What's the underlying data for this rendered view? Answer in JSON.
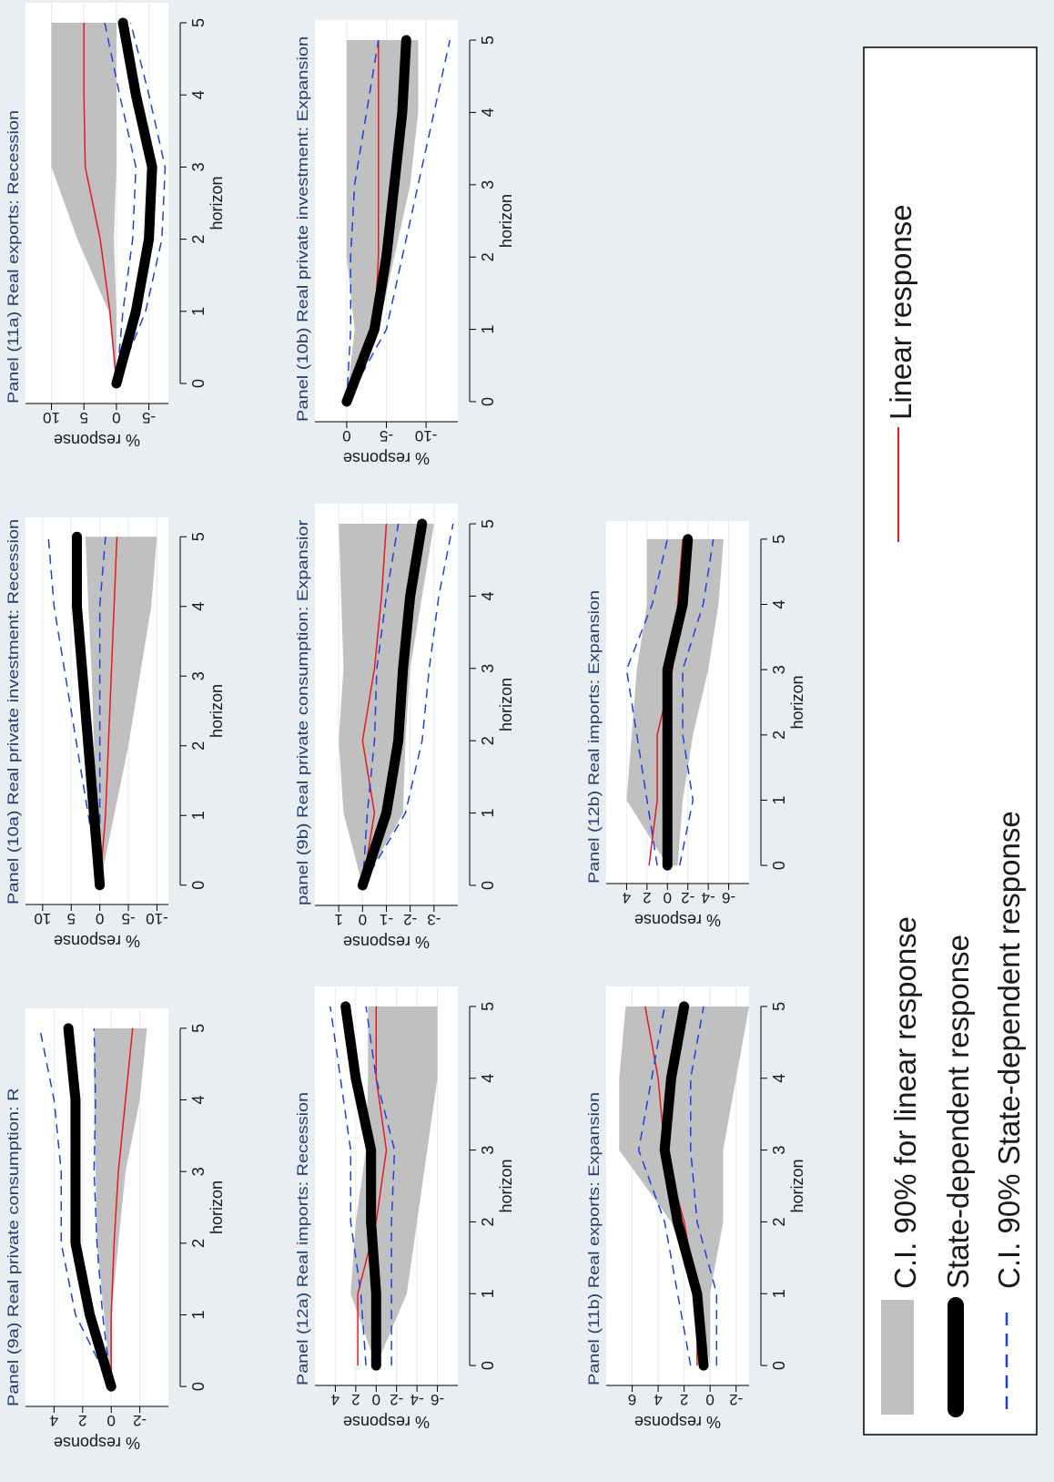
{
  "chart_data": [
    {
      "id": "p11a",
      "type": "line",
      "title": "Panel (11a) Real exports: Recession",
      "xlabel": "horizon",
      "ylabel": "% response",
      "x": [
        0,
        1,
        2,
        3,
        4,
        5
      ],
      "xticks": [
        0,
        1,
        2,
        3,
        4,
        5
      ],
      "ylim": [
        -8,
        14
      ],
      "yticks": [
        -5,
        0,
        5,
        10
      ],
      "series": [
        {
          "name": "C.I. 90% for linear response",
          "kind": "band",
          "lower": [
            0,
            0,
            0.4,
            0,
            0,
            0
          ],
          "upper": [
            0,
            1.2,
            6,
            10,
            10,
            10
          ]
        },
        {
          "name": "Linear response",
          "kind": "linear",
          "values": [
            0,
            1,
            2.5,
            4.8,
            5,
            5
          ]
        },
        {
          "name": "State-dependent response",
          "kind": "state",
          "values": [
            0,
            -3,
            -5,
            -5.5,
            -3,
            -1
          ]
        },
        {
          "name": "C.I. 90% State-dependent response",
          "kind": "ci",
          "values": [
            0,
            -1,
            -2.5,
            -3,
            -0.5,
            1.8
          ]
        },
        {
          "name": "C.I. 90% State-dependent response",
          "kind": "ci",
          "values": [
            0,
            -4.5,
            -7,
            -7.5,
            -5,
            -2.2
          ]
        }
      ]
    },
    {
      "id": "p10a",
      "type": "line",
      "title": "Panel (10a) Real private investment: Recession",
      "xlabel": "horizon",
      "ylabel": "% response",
      "x": [
        0,
        1,
        2,
        3,
        4,
        5
      ],
      "xticks": [
        0,
        1,
        2,
        3,
        4,
        5
      ],
      "ylim": [
        -12,
        13
      ],
      "yticks": [
        -10,
        -5,
        0,
        5,
        10
      ],
      "series": [
        {
          "name": "C.I. 90% for linear response",
          "kind": "band",
          "lower": [
            0,
            -2.5,
            -5,
            -7,
            -9,
            -10
          ],
          "upper": [
            0,
            0.8,
            1,
            1.4,
            2,
            2.5
          ]
        },
        {
          "name": "Linear response",
          "kind": "linear",
          "values": [
            0,
            -1,
            -1.5,
            -2,
            -2.5,
            -3
          ]
        },
        {
          "name": "State-dependent response",
          "kind": "state",
          "values": [
            0,
            1,
            2,
            3,
            4,
            4
          ]
        },
        {
          "name": "C.I. 90% State-dependent response",
          "kind": "ci",
          "values": [
            0,
            2,
            4,
            6,
            8,
            9
          ]
        },
        {
          "name": "C.I. 90% State-dependent response",
          "kind": "ci",
          "values": [
            0,
            0,
            0,
            0,
            0,
            -1
          ]
        }
      ]
    },
    {
      "id": "p9a",
      "type": "line",
      "title": "Panel (9a) Real private consumption: R",
      "xlabel": "horizon",
      "ylabel": "% response",
      "x": [
        0,
        1,
        2,
        3,
        4,
        5
      ],
      "xticks": [
        0,
        1,
        2,
        3,
        4,
        5
      ],
      "ylim": [
        -4,
        6
      ],
      "yticks": [
        -2,
        0,
        2,
        4
      ],
      "series": [
        {
          "name": "C.I. 90% for linear response",
          "kind": "band",
          "lower": [
            0,
            0,
            -0.5,
            -1,
            -2,
            -2.5
          ],
          "upper": [
            0,
            0.5,
            1,
            1.1,
            1.2,
            1.2
          ]
        },
        {
          "name": "Linear response",
          "kind": "linear",
          "values": [
            0,
            0,
            -0.2,
            -0.5,
            -1,
            -1.5
          ]
        },
        {
          "name": "State-dependent response",
          "kind": "state",
          "values": [
            0,
            1.5,
            2.5,
            2.5,
            2.5,
            3
          ]
        },
        {
          "name": "C.I. 90% State-dependent response",
          "kind": "ci",
          "values": [
            0,
            2.5,
            3.5,
            3.5,
            4,
            5
          ]
        },
        {
          "name": "C.I. 90% State-dependent response",
          "kind": "ci",
          "values": [
            0,
            0.6,
            1,
            1.2,
            1.1,
            1.2
          ]
        }
      ]
    },
    {
      "id": "p10b",
      "type": "line",
      "title": "Panel (10b) Real private investment: Expansion",
      "xlabel": "horizon",
      "ylabel": "% response",
      "x": [
        0,
        1,
        2,
        3,
        4,
        5
      ],
      "xticks": [
        0,
        1,
        2,
        3,
        4,
        5
      ],
      "ylim": [
        -14,
        4
      ],
      "yticks": [
        -10,
        -5,
        0
      ],
      "series": [
        {
          "name": "C.I. 90% for linear response",
          "kind": "band",
          "lower": [
            0,
            -4,
            -6,
            -8,
            -9,
            -9
          ],
          "upper": [
            0,
            -1,
            0,
            0,
            0,
            0
          ]
        },
        {
          "name": "Linear response",
          "kind": "linear",
          "values": [
            0,
            -3.5,
            -4,
            -4,
            -4,
            -4
          ]
        },
        {
          "name": "State-dependent response",
          "kind": "state",
          "values": [
            0,
            -3.5,
            -5,
            -6,
            -7,
            -7.5
          ]
        },
        {
          "name": "C.I. 90% State-dependent response",
          "kind": "ci",
          "values": [
            0,
            -0.5,
            -0.5,
            -1,
            -2.5,
            -4
          ]
        },
        {
          "name": "C.I. 90% State-dependent response",
          "kind": "ci",
          "values": [
            0,
            -5,
            -7,
            -9,
            -11,
            -13
          ]
        }
      ]
    },
    {
      "id": "p9b",
      "type": "line",
      "title": "panel (9b) Real private consumption: Expansior",
      "xlabel": "horizon",
      "ylabel": "% response",
      "x": [
        0,
        1,
        2,
        3,
        4,
        5
      ],
      "xticks": [
        0,
        1,
        2,
        3,
        4,
        5
      ],
      "ylim": [
        -4,
        2
      ],
      "yticks": [
        -3,
        -2,
        -1,
        0,
        1
      ],
      "series": [
        {
          "name": "C.I. 90% for linear response",
          "kind": "band",
          "lower": [
            0,
            -1.7,
            -1.8,
            -2,
            -2.5,
            -3
          ],
          "upper": [
            0,
            0.8,
            1,
            0.8,
            0.9,
            1
          ]
        },
        {
          "name": "Linear response",
          "kind": "linear",
          "values": [
            0,
            -0.5,
            0,
            -0.5,
            -0.8,
            -1
          ]
        },
        {
          "name": "State-dependent response",
          "kind": "state",
          "values": [
            0,
            -1,
            -1.5,
            -1.7,
            -2,
            -2.5
          ]
        },
        {
          "name": "C.I. 90% State-dependent response",
          "kind": "ci",
          "values": [
            0,
            -0.2,
            -0.5,
            -0.6,
            -1,
            -1.5
          ]
        },
        {
          "name": "C.I. 90% State-dependent response",
          "kind": "ci",
          "values": [
            0,
            -1.8,
            -2.5,
            -2.8,
            -3.2,
            -3.8
          ]
        }
      ]
    },
    {
      "id": "p12a",
      "type": "line",
      "title": "Panel (12a) Real imports: Recession",
      "xlabel": "horizon",
      "ylabel": "% response",
      "x": [
        0,
        1,
        2,
        3,
        4,
        5
      ],
      "xticks": [
        0,
        1,
        2,
        3,
        4,
        5
      ],
      "ylim": [
        -8,
        6
      ],
      "yticks": [
        -6,
        -4,
        -2,
        0,
        2,
        4
      ],
      "series": [
        {
          "name": "C.I. 90% for linear response",
          "kind": "band",
          "lower": [
            0,
            -3,
            -4,
            -5,
            -6,
            -6
          ],
          "upper": [
            0,
            2.5,
            2,
            1,
            0.8,
            0.8
          ]
        },
        {
          "name": "Linear response",
          "kind": "linear",
          "values": [
            1.8,
            1.8,
            0,
            -1,
            0,
            0
          ]
        },
        {
          "name": "State-dependent response",
          "kind": "state",
          "values": [
            0,
            0,
            0.5,
            0.5,
            2,
            3
          ]
        },
        {
          "name": "C.I. 90% State-dependent response",
          "kind": "ci",
          "values": [
            1,
            1.5,
            2.5,
            2.5,
            3.5,
            4.5
          ]
        },
        {
          "name": "C.I. 90% State-dependent response",
          "kind": "ci",
          "values": [
            -1.5,
            -1.5,
            -1.5,
            -1.8,
            0,
            1
          ]
        }
      ]
    },
    {
      "id": "p12b",
      "type": "line",
      "title": "Panel (12b) Real imports: Expansion",
      "xlabel": "horizon",
      "ylabel": "% response",
      "x": [
        0,
        1,
        2,
        3,
        4,
        5
      ],
      "xticks": [
        0,
        1,
        2,
        3,
        4,
        5
      ],
      "ylim": [
        -8,
        6
      ],
      "yticks": [
        -6,
        -4,
        -2,
        0,
        2,
        4
      ],
      "series": [
        {
          "name": "C.I. 90% for linear response",
          "kind": "band",
          "lower": [
            -1,
            -1.5,
            -2.5,
            -4,
            -5,
            -5.5
          ],
          "upper": [
            0,
            4,
            3.5,
            3,
            2,
            2
          ]
        },
        {
          "name": "Linear response",
          "kind": "linear",
          "values": [
            1.8,
            1,
            1,
            -0.5,
            -1,
            -1.5
          ]
        },
        {
          "name": "State-dependent response",
          "kind": "state",
          "values": [
            0,
            0,
            0,
            0,
            -1.5,
            -2
          ]
        },
        {
          "name": "C.I. 90% State-dependent response",
          "kind": "ci",
          "values": [
            1,
            2,
            3,
            4,
            1.5,
            0
          ]
        },
        {
          "name": "C.I. 90% State-dependent response",
          "kind": "ci",
          "values": [
            -1.2,
            -2.5,
            -1.5,
            -1.5,
            -3.5,
            -4.5
          ]
        }
      ]
    },
    {
      "id": "p11b",
      "type": "line",
      "title": "Panel (11b) Real exports: Expansion",
      "xlabel": "horizon",
      "ylabel": "% response",
      "x": [
        0,
        1,
        2,
        3,
        4,
        5
      ],
      "xticks": [
        0,
        1,
        2,
        3,
        4,
        5
      ],
      "ylim": [
        -3,
        8
      ],
      "yticks": [
        -2,
        0,
        2,
        4,
        6
      ],
      "series": [
        {
          "name": "C.I. 90% for linear response",
          "kind": "band",
          "lower": [
            0,
            0,
            -1,
            -1,
            -2,
            -3
          ],
          "upper": [
            0,
            1,
            3,
            7,
            7,
            6.5
          ]
        },
        {
          "name": "Linear response",
          "kind": "linear",
          "values": [
            1,
            1,
            2,
            3.5,
            4,
            5
          ]
        },
        {
          "name": "State-dependent response",
          "kind": "state",
          "values": [
            0.5,
            1,
            2.5,
            3.5,
            3,
            2
          ]
        },
        {
          "name": "C.I. 90% State-dependent response",
          "kind": "ci",
          "values": [
            1.5,
            2.5,
            3.5,
            5.5,
            4.5,
            3.5
          ]
        },
        {
          "name": "C.I. 90% State-dependent response",
          "kind": "ci",
          "values": [
            -0.5,
            -0.5,
            1,
            1.5,
            1.5,
            0.5
          ]
        }
      ]
    }
  ],
  "legend": {
    "items": [
      {
        "label": "C.I. 90% for linear response",
        "kind": "band"
      },
      {
        "label": "State-dependent response",
        "kind": "state"
      },
      {
        "label": "C.I. 90% State-dependent response",
        "kind": "ci"
      },
      {
        "label": "Linear response",
        "kind": "linear"
      }
    ]
  },
  "colors": {
    "band": "#c0c0c0",
    "linear": "#e41a1c",
    "state": "#000000",
    "ci": "#1f3fe0",
    "title": "#1f3e73",
    "background": "#e8eef1",
    "plot": "#ffffff"
  }
}
